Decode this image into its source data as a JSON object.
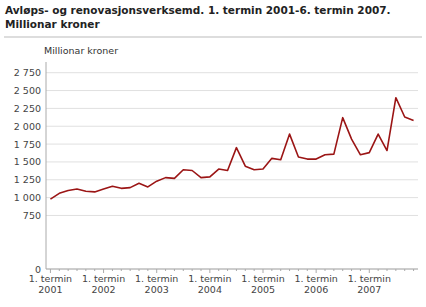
{
  "chart_data": {
    "type": "line",
    "title": "Avløps- og renovasjonsverksemd. 1. termin 2001-6. termin 2007.",
    "subtitle": "Millionar kroner",
    "ylabel": "Millionar kroner",
    "color": "#9b1515",
    "grid": true,
    "ylim": [
      0,
      2900
    ],
    "yticks": [
      0,
      750,
      {
        "value": 1000,
        "label": "1 000"
      },
      {
        "value": 1250,
        "label": "1 250"
      },
      {
        "value": 1500,
        "label": "1 500"
      },
      {
        "value": 1750,
        "label": "1 750"
      },
      {
        "value": 2000,
        "label": "2 000"
      },
      {
        "value": 2250,
        "label": "2 250"
      },
      {
        "value": 2500,
        "label": "2 500"
      },
      {
        "value": 2750,
        "label": "2 750"
      }
    ],
    "categories": [
      "1. termin\n2001",
      null,
      null,
      null,
      null,
      null,
      "1. termin\n2002",
      null,
      null,
      null,
      null,
      null,
      "1. termin\n2003",
      null,
      null,
      null,
      null,
      null,
      "1. termin\n2004",
      null,
      null,
      null,
      null,
      null,
      "1. termin\n2005",
      null,
      null,
      null,
      null,
      null,
      "1. termin\n2006",
      null,
      null,
      null,
      null,
      null,
      "1. termin\n2007",
      null,
      null,
      null,
      null,
      null
    ],
    "values": [
      980,
      1060,
      1100,
      1120,
      1090,
      1080,
      1120,
      1160,
      1130,
      1140,
      1200,
      1150,
      1230,
      1280,
      1270,
      1390,
      1380,
      1280,
      1290,
      1400,
      1380,
      1700,
      1440,
      1390,
      1400,
      1550,
      1530,
      1890,
      1570,
      1540,
      1540,
      1600,
      1610,
      2120,
      1820,
      1600,
      1630,
      1890,
      1660,
      2400,
      2130,
      2080
    ]
  }
}
